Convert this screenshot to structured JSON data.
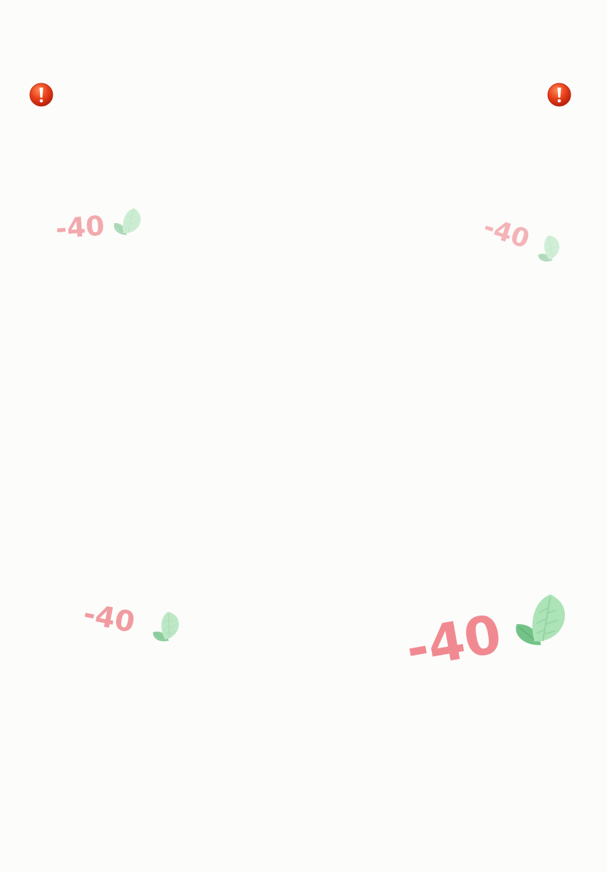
{
  "alerts": [
    {
      "icon": "exclamation-icon",
      "color": "#e53a12"
    },
    {
      "icon": "exclamation-icon",
      "color": "#e53a12"
    }
  ],
  "popups": [
    {
      "text": "-40",
      "icon": "leaf-icon"
    },
    {
      "text": "-40",
      "icon": "leaf-icon"
    },
    {
      "text": "-40",
      "icon": "leaf-icon"
    },
    {
      "text": "-40",
      "icon": "leaf-icon"
    }
  ],
  "colors": {
    "background": "#fcfcfb",
    "damage_text": "#f08a90",
    "leaf_light": "#a8e2b4",
    "leaf_dark": "#6cc082"
  }
}
